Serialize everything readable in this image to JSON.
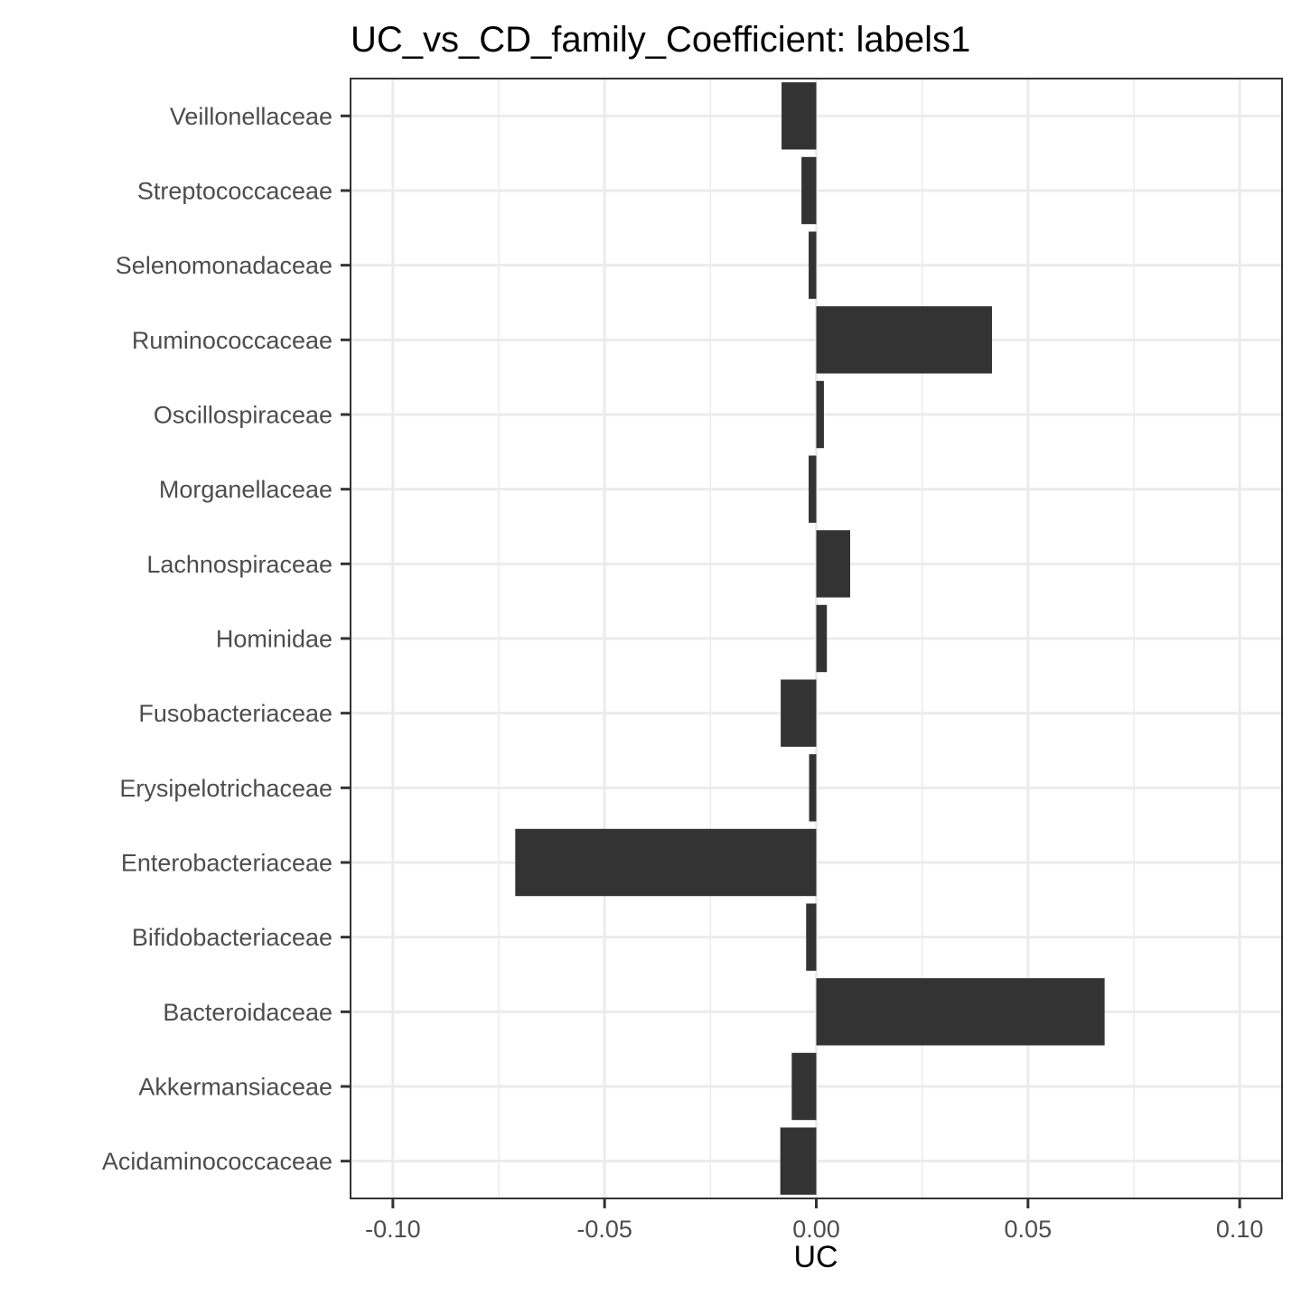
{
  "chart_data": {
    "type": "bar",
    "orientation": "horizontal",
    "title": "UC_vs_CD_family_Coefficient: labels1",
    "xlabel": "UC",
    "ylabel": "",
    "xlim": [
      -0.11,
      0.11
    ],
    "xticks": [
      -0.1,
      -0.05,
      0.0,
      0.05,
      0.1
    ],
    "xtick_labels": [
      "-0.10",
      "-0.05",
      "0.00",
      "0.05",
      "0.10"
    ],
    "grid": true,
    "categories": [
      "Veillonellaceae",
      "Streptococcaceae",
      "Selenomonadaceae",
      "Ruminococcaceae",
      "Oscillospiraceae",
      "Morganellaceae",
      "Lachnospiraceae",
      "Hominidae",
      "Fusobacteriaceae",
      "Erysipelotrichaceae",
      "Enterobacteriaceae",
      "Bifidobacteriaceae",
      "Bacteroidaceae",
      "Akkermansiaceae",
      "Acidaminococcaceae"
    ],
    "values": [
      -0.0082,
      -0.0035,
      -0.0018,
      0.0415,
      0.0018,
      -0.0018,
      0.008,
      0.0025,
      -0.0084,
      -0.0017,
      -0.0711,
      -0.0024,
      0.0681,
      -0.0058,
      -0.0085
    ],
    "colors": {
      "bar": "#333333",
      "grid": "#ebebeb",
      "panel_border": "#333333",
      "background": "#ffffff"
    }
  }
}
